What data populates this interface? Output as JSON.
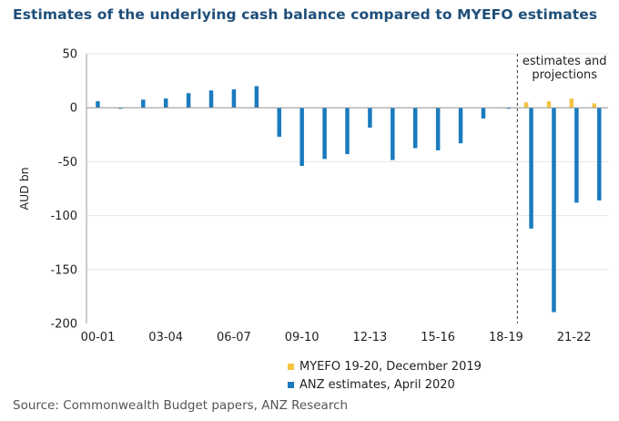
{
  "title": "Estimates of the underlying cash balance compared to MYEFO estimates",
  "source": "Source: Commonwealth Budget papers, ANZ Research",
  "chart_data": {
    "type": "bar",
    "title": "Estimates of the underlying cash balance compared to MYEFO estimates",
    "ylabel": "AUD bn",
    "xlabel": "",
    "ylim": [
      -200,
      50
    ],
    "yticks": [
      50,
      0,
      -50,
      -100,
      -150,
      -200
    ],
    "grid": true,
    "legend_position": "bottom",
    "categories": [
      "00-01",
      "01-02",
      "02-03",
      "03-04",
      "04-05",
      "05-06",
      "06-07",
      "07-08",
      "08-09",
      "09-10",
      "10-11",
      "11-12",
      "12-13",
      "13-14",
      "14-15",
      "15-16",
      "16-17",
      "17-18",
      "18-19",
      "19-20",
      "20-21",
      "21-22",
      "22-23"
    ],
    "xtick_labels": [
      "00-01",
      "03-04",
      "06-07",
      "09-10",
      "12-13",
      "15-16",
      "18-19",
      "21-22"
    ],
    "series": [
      {
        "name": "MYEFO 19-20, December 2019",
        "color": "#f5c242",
        "values": [
          null,
          null,
          null,
          null,
          null,
          null,
          null,
          null,
          null,
          null,
          null,
          null,
          null,
          null,
          null,
          null,
          null,
          null,
          -0.7,
          5,
          6,
          8.5,
          4
        ]
      },
      {
        "name": "ANZ estimates, April 2020",
        "color": "#1a7bbf",
        "values": [
          6,
          -1,
          7.5,
          8.5,
          13.5,
          16,
          17,
          20,
          -27,
          -54,
          -47.5,
          -43,
          -18.5,
          -48.5,
          -37.5,
          -39.5,
          -33,
          -10,
          -1,
          -112,
          -189.5,
          -88,
          -86
        ]
      }
    ],
    "annotation": {
      "text_line1": "estimates and",
      "text_line2": "projections",
      "after_category": "18-19"
    }
  }
}
